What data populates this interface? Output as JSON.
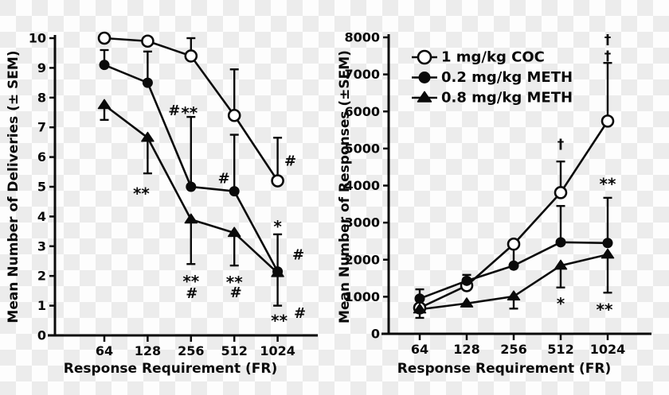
{
  "figure": {
    "ink": "#0a0a0a",
    "checker_colors": [
      "#fdfdfd",
      "#ececec"
    ],
    "marker_fill_open": "#ffffff"
  },
  "legend": {
    "position": "top-left-of-right-panel",
    "items": [
      {
        "label": "1 mg/kg COC",
        "marker": "open-circle"
      },
      {
        "label": "0.2 mg/kg METH",
        "marker": "filled-circle"
      },
      {
        "label": "0.8 mg/kg METH",
        "marker": "filled-triangle"
      }
    ]
  },
  "chart_data": [
    {
      "type": "line",
      "panel": "deliveries",
      "xlabel": "Response Requirement (FR)",
      "ylabel": "Mean Number of Deliveries (± SEM)",
      "categories": [
        "64",
        "128",
        "256",
        "512",
        "1024"
      ],
      "ylim": [
        0,
        10
      ],
      "yticks": [
        0,
        1,
        2,
        3,
        4,
        5,
        6,
        7,
        8,
        9,
        10
      ],
      "grid": false,
      "error_bars": "SEM",
      "series": [
        {
          "name": "1 mg/kg COC",
          "marker": "open-circle",
          "values": [
            10.0,
            9.9,
            9.4,
            7.4,
            5.2
          ],
          "err_up": [
            0,
            0,
            0.6,
            1.55,
            1.45
          ],
          "err_down": [
            0,
            0,
            0,
            0,
            0
          ]
        },
        {
          "name": "0.2 mg/kg METH",
          "marker": "filled-circle",
          "values": [
            9.1,
            8.5,
            5.0,
            4.85,
            2.15
          ],
          "err_up": [
            0.5,
            1.05,
            2.35,
            1.9,
            1.25
          ],
          "err_down": [
            0,
            0,
            0,
            0,
            1.15
          ]
        },
        {
          "name": "0.8 mg/kg METH",
          "marker": "filled-triangle",
          "values": [
            7.75,
            6.65,
            3.9,
            3.45,
            2.1
          ],
          "err_up": [
            0,
            0,
            0,
            0,
            0
          ],
          "err_down": [
            0.5,
            1.2,
            1.5,
            1.1,
            0
          ]
        }
      ],
      "annotations": [
        {
          "text": "**",
          "x": 1,
          "y": 4.9,
          "dx": -8
        },
        {
          "text": "#",
          "x": 2,
          "y": 7.55,
          "dx": -21
        },
        {
          "text": "**",
          "x": 2,
          "y": 7.62,
          "dx": -2
        },
        {
          "text": "**",
          "x": 2,
          "y": 1.95,
          "dx": 0
        },
        {
          "text": "#",
          "x": 2,
          "y": 1.4,
          "dx": 1
        },
        {
          "text": "#",
          "x": 3,
          "y": 5.27,
          "dx": -13
        },
        {
          "text": "**",
          "x": 3,
          "y": 1.93,
          "dx": 0
        },
        {
          "text": "#",
          "x": 3,
          "y": 1.43,
          "dx": 2
        },
        {
          "text": "#",
          "x": 4,
          "y": 5.85,
          "dx": 16
        },
        {
          "text": "*",
          "x": 4,
          "y": 3.8,
          "dx": 0
        },
        {
          "text": "#",
          "x": 4,
          "y": 2.7,
          "dx": 26
        },
        {
          "text": "**",
          "x": 4,
          "y": 0.63,
          "dx": 2
        },
        {
          "text": "#",
          "x": 4,
          "y": 0.74,
          "dx": 28
        }
      ]
    },
    {
      "type": "line",
      "panel": "responses",
      "xlabel": "Response Requirement (FR)",
      "ylabel": "Mean Number of Responses (±SEM)",
      "categories": [
        "64",
        "128",
        "256",
        "512",
        "1024"
      ],
      "ylim": [
        0,
        8000
      ],
      "yticks": [
        0,
        1000,
        2000,
        3000,
        4000,
        5000,
        6000,
        7000,
        8000
      ],
      "grid": false,
      "error_bars": "SEM",
      "has_legend": true,
      "series": [
        {
          "name": "1 mg/kg COC",
          "marker": "open-circle",
          "values": [
            700,
            1300,
            2420,
            3810,
            5740
          ],
          "err_up": [
            0,
            0,
            0,
            840,
            1570
          ],
          "err_down": [
            0,
            0,
            0,
            0,
            0
          ]
        },
        {
          "name": "0.2 mg/kg METH",
          "marker": "filled-circle",
          "values": [
            950,
            1430,
            1840,
            2470,
            2450
          ],
          "err_up": [
            250,
            160,
            490,
            980,
            1220
          ],
          "err_down": [
            0,
            0,
            0,
            0,
            0
          ]
        },
        {
          "name": "0.8 mg/kg METH",
          "marker": "filled-triangle",
          "values": [
            660,
            820,
            1010,
            1840,
            2140
          ],
          "err_up": [
            0,
            0,
            0,
            0,
            0
          ],
          "err_down": [
            230,
            0,
            330,
            590,
            1030
          ]
        }
      ],
      "annotations": [
        {
          "text": "†",
          "x": 3,
          "y": 5100,
          "dx": 0
        },
        {
          "text": "†",
          "x": 4,
          "y": 7930,
          "dx": 0
        },
        {
          "text": "†",
          "x": 4,
          "y": 7490,
          "dx": 0
        },
        {
          "text": "**",
          "x": 4,
          "y": 4150,
          "dx": 0
        },
        {
          "text": "*",
          "x": 3,
          "y": 920,
          "dx": 0
        },
        {
          "text": "**",
          "x": 4,
          "y": 760,
          "dx": -4
        }
      ]
    }
  ]
}
